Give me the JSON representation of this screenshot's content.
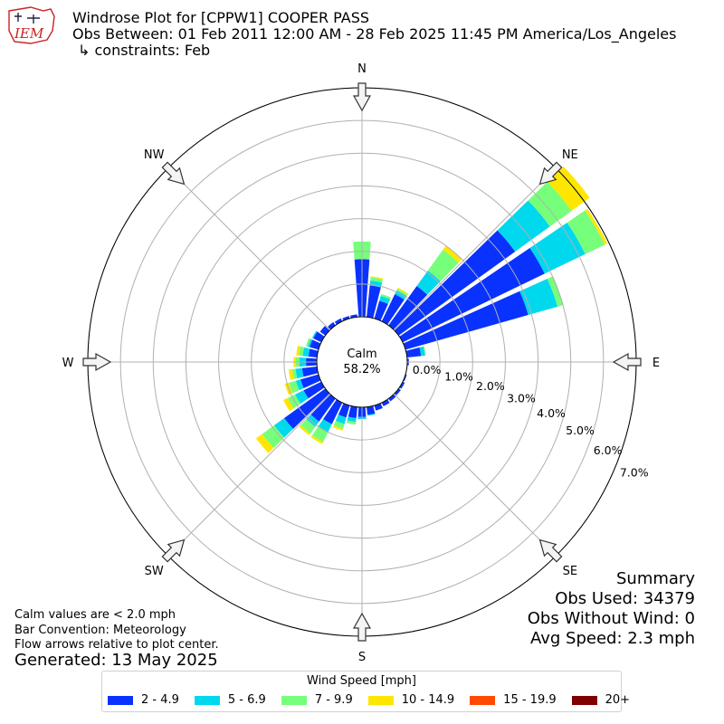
{
  "header": {
    "title": "Windrose Plot for [CPPW1] COOPER PASS",
    "period": "Obs Between: 01 Feb 2011 12:00 AM - 28 Feb 2025 11:45 PM America/Los_Angeles",
    "constraints": "↳ constraints: Feb",
    "logo_text": "IEM"
  },
  "notes": {
    "calm_note": "Calm values are < 2.0 mph",
    "bar_convention": "Bar Convention: Meteorology",
    "arrows_note": "Flow arrows relative to plot center.",
    "generated": "Generated: 13 May 2025"
  },
  "summary": {
    "heading": "Summary",
    "obs_used": "Obs Used: 34379",
    "obs_without_wind": "Obs Without Wind: 0",
    "avg_speed": "Avg Speed: 2.3 mph"
  },
  "chart_data": {
    "type": "windrose",
    "calm_label": "Calm",
    "calm_percent": "58.2%",
    "radial_tick_labels": [
      "0.0%",
      "1.0%",
      "2.0%",
      "3.0%",
      "4.0%",
      "5.0%",
      "6.0%",
      "7.0%"
    ],
    "rlim": [
      0,
      7
    ],
    "grid": true,
    "direction_labels": [
      "N",
      "NE",
      "E",
      "SE",
      "S",
      "SW",
      "W",
      "NW"
    ],
    "legend_title": "Wind Speed [mph]",
    "legend_placement": "bottom-center",
    "speed_bins": [
      {
        "label": "2 - 4.9",
        "color": "#0a32ff"
      },
      {
        "label": "5 - 6.9",
        "color": "#00d8ee"
      },
      {
        "label": "7 - 9.9",
        "color": "#76ff7a"
      },
      {
        "label": "10 - 14.9",
        "color": "#ffe600"
      },
      {
        "label": "15 - 19.9",
        "color": "#ff4a00"
      },
      {
        "label": "20+",
        "color": "#800000"
      }
    ],
    "direction_degrees": [
      0,
      10,
      20,
      30,
      40,
      50,
      60,
      70,
      80,
      90,
      100,
      110,
      120,
      130,
      140,
      150,
      160,
      170,
      180,
      190,
      200,
      210,
      220,
      230,
      240,
      250,
      260,
      270,
      280,
      290,
      300,
      310,
      320,
      330,
      340,
      350
    ],
    "cumulative_percent": [
      [
        1.76,
        1.76,
        2.3,
        2.3,
        2.3,
        2.3
      ],
      [
        0.97,
        1.12,
        1.22,
        1.25,
        1.25,
        1.25
      ],
      [
        0.56,
        0.72,
        0.78,
        0.78,
        0.78,
        0.78
      ],
      [
        0.92,
        1.05,
        1.1,
        1.14,
        1.14,
        1.14
      ],
      [
        1.48,
        2.06,
        2.85,
        3.0,
        3.0,
        3.0
      ],
      [
        4.39,
        5.7,
        6.52,
        7.2,
        7.2,
        7.2
      ],
      [
        4.82,
        6.2,
        6.86,
        6.95,
        6.95,
        6.95
      ],
      [
        3.9,
        4.83,
        5.02,
        5.02,
        5.02,
        5.02
      ],
      [
        0.43,
        0.55,
        0.58,
        0.58,
        0.58,
        0.58
      ],
      [
        0.05,
        0.05,
        0.05,
        0.05,
        0.05,
        0.05
      ],
      [
        0.0,
        0.0,
        0.0,
        0.0,
        0.0,
        0.0
      ],
      [
        0.04,
        0.04,
        0.04,
        0.04,
        0.04,
        0.04
      ],
      [
        0.07,
        0.07,
        0.07,
        0.07,
        0.07,
        0.07
      ],
      [
        0.08,
        0.08,
        0.08,
        0.08,
        0.08,
        0.08
      ],
      [
        0.1,
        0.1,
        0.1,
        0.1,
        0.1,
        0.1
      ],
      [
        0.12,
        0.12,
        0.12,
        0.12,
        0.12,
        0.12
      ],
      [
        0.16,
        0.16,
        0.16,
        0.16,
        0.16,
        0.16
      ],
      [
        0.24,
        0.27,
        0.27,
        0.27,
        0.27,
        0.27
      ],
      [
        0.3,
        0.36,
        0.36,
        0.36,
        0.36,
        0.36
      ],
      [
        0.34,
        0.46,
        0.54,
        0.54,
        0.54,
        0.54
      ],
      [
        0.38,
        0.59,
        0.74,
        0.8,
        0.8,
        0.8
      ],
      [
        0.73,
        1.0,
        1.33,
        1.4,
        1.4,
        1.4
      ],
      [
        0.86,
        1.06,
        1.31,
        1.38,
        1.38,
        1.38
      ],
      [
        1.55,
        1.93,
        2.38,
        2.61,
        2.61,
        2.61
      ],
      [
        0.6,
        0.89,
        1.14,
        1.29,
        1.29,
        1.29
      ],
      [
        0.57,
        0.72,
        0.94,
        1.07,
        1.07,
        1.07
      ],
      [
        0.46,
        0.66,
        0.76,
        0.87,
        0.87,
        0.87
      ],
      [
        0.33,
        0.53,
        0.64,
        0.71,
        0.71,
        0.71
      ],
      [
        0.26,
        0.44,
        0.56,
        0.64,
        0.64,
        0.64
      ],
      [
        0.28,
        0.34,
        0.4,
        0.4,
        0.4,
        0.4
      ],
      [
        0.27,
        0.31,
        0.31,
        0.31,
        0.31,
        0.31
      ],
      [
        0.2,
        0.2,
        0.2,
        0.2,
        0.2,
        0.2
      ],
      [
        0.12,
        0.12,
        0.12,
        0.12,
        0.12,
        0.12
      ],
      [
        0.1,
        0.1,
        0.1,
        0.1,
        0.1,
        0.1
      ],
      [
        0.08,
        0.08,
        0.08,
        0.08,
        0.08,
        0.08
      ],
      [
        0.08,
        0.08,
        0.08,
        0.08,
        0.08,
        0.08
      ]
    ]
  }
}
